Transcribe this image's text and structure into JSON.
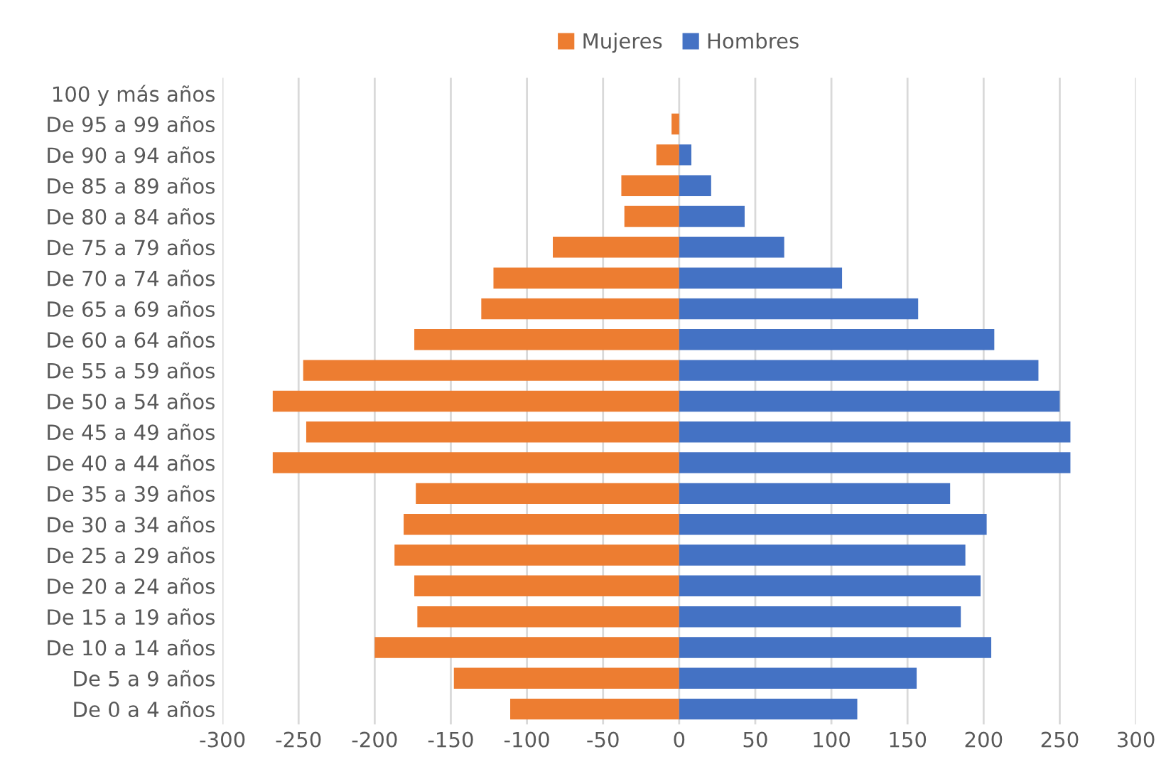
{
  "chart_data": {
    "type": "bar",
    "orientation": "horizontal",
    "categories": [
      "100 y más años",
      "De 95 a 99 años",
      "De 90 a 94 años",
      "De 85 a 89 años",
      "De 80 a 84 años",
      "De 75 a 79 años",
      "De 70 a 74 años",
      "De 65 a 69 años",
      "De 60 a 64 años",
      "De 55 a 59 años",
      "De 50 a 54 años",
      "De 45 a 49 años",
      "De 40 a 44 años",
      "De 35 a 39 años",
      "De 30 a 34 años",
      "De 25 a 29 años",
      "De 20 a 24 años",
      "De 15 a 19 años",
      "De 10 a 14 años",
      "De 5 a 9 años",
      "De 0 a 4 años"
    ],
    "series": [
      {
        "name": "Mujeres",
        "color": "#ed7d31",
        "values": [
          0,
          -5,
          -15,
          -38,
          -36,
          -83,
          -122,
          -130,
          -174,
          -247,
          -267,
          -245,
          -267,
          -173,
          -181,
          -187,
          -174,
          -172,
          -200,
          -148,
          -111
        ]
      },
      {
        "name": "Hombres",
        "color": "#4472c4",
        "values": [
          0,
          0,
          8,
          21,
          43,
          69,
          107,
          157,
          207,
          236,
          250,
          257,
          257,
          178,
          202,
          188,
          198,
          185,
          205,
          156,
          117
        ]
      }
    ],
    "xlim": [
      -300,
      300
    ],
    "xticks": [
      -300,
      -250,
      -200,
      -150,
      -100,
      -50,
      0,
      50,
      100,
      150,
      200,
      250,
      300
    ],
    "grid": "x",
    "legend": "top",
    "stacked": true
  }
}
